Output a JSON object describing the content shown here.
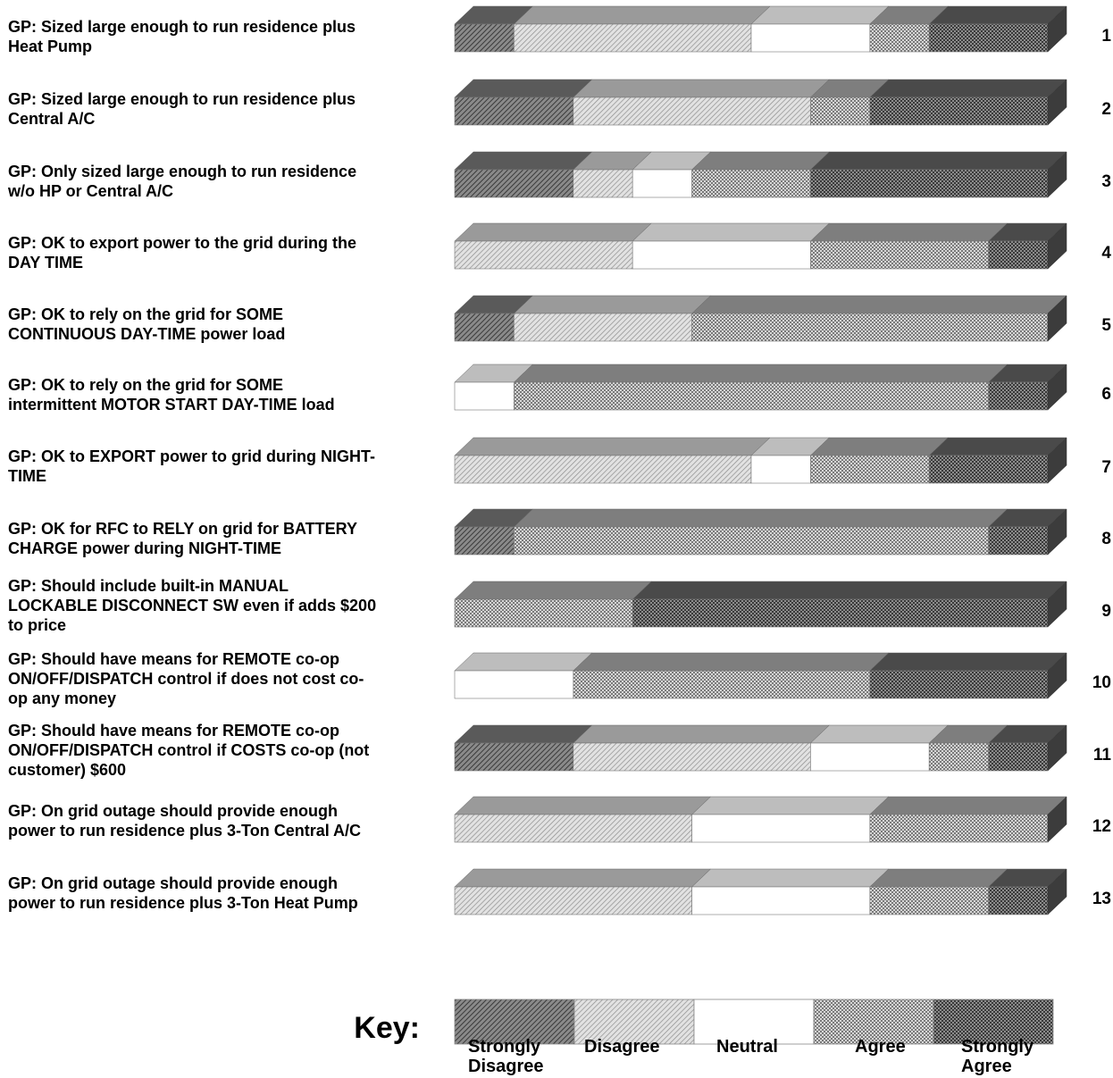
{
  "chart_data": {
    "type": "bar",
    "orientation": "horizontal",
    "stacked": true,
    "three_d": true,
    "key_title": "Key:",
    "series": [
      {
        "name": "Strongly\nDisagree",
        "pattern": "diagonal-dark",
        "color": "#6a6a6a"
      },
      {
        "name": "Disagree",
        "pattern": "diagonal-light",
        "color": "#bdbdbd"
      },
      {
        "name": "Neutral",
        "pattern": "solid-white",
        "color": "#ffffff"
      },
      {
        "name": "Agree",
        "pattern": "checker-light",
        "color": "#a8a8a8"
      },
      {
        "name": "Strongly\nAgree",
        "pattern": "checker-dark",
        "color": "#555555"
      }
    ],
    "rows": [
      {
        "number": "1",
        "question": "GP:  Sized large enough to run residence plus\nHeat Pump",
        "values": [
          1,
          4,
          2,
          1,
          2
        ]
      },
      {
        "number": "2",
        "question": "GP:  Sized large enough to run residence plus\nCentral A/C",
        "values": [
          2,
          4,
          0,
          1,
          3
        ]
      },
      {
        "number": "3",
        "question": "GP:  Only sized large enough to run residence\nw/o HP or Central A/C",
        "values": [
          2,
          1,
          1,
          2,
          4
        ]
      },
      {
        "number": "4",
        "question": "GP:  OK to export power to the grid during the\nDAY TIME",
        "values": [
          0,
          3,
          3,
          3,
          1
        ]
      },
      {
        "number": "5",
        "question": "GP:  OK to rely on the grid for SOME\nCONTINUOUS DAY-TIME power load",
        "values": [
          1,
          3,
          0,
          6,
          0
        ]
      },
      {
        "number": "6",
        "question": "GP:  OK to rely on the grid for SOME\nintermittent MOTOR START DAY-TIME load",
        "values": [
          0,
          0,
          1,
          8,
          1
        ]
      },
      {
        "number": "7",
        "question": "GP:  OK to EXPORT power to grid during NIGHT-\nTIME",
        "values": [
          0,
          5,
          1,
          2,
          2
        ]
      },
      {
        "number": "8",
        "question": "GP:  OK for RFC to RELY on grid for BATTERY\nCHARGE power during NIGHT-TIME",
        "values": [
          1,
          0,
          0,
          8,
          1
        ]
      },
      {
        "number": "9",
        "question": "GP:  Should include built-in MANUAL\nLOCKABLE DISCONNECT SW even if adds $200\nto price",
        "values": [
          0,
          0,
          0,
          3,
          7
        ]
      },
      {
        "number": "10",
        "question": "GP:  Should have means for REMOTE co-op\nON/OFF/DISPATCH control if does not cost co-\nop any money",
        "values": [
          0,
          0,
          2,
          5,
          3
        ]
      },
      {
        "number": "11",
        "question": "GP:  Should have means for REMOTE co-op\nON/OFF/DISPATCH control if COSTS co-op (not\ncustomer) $600",
        "values": [
          2,
          4,
          2,
          1,
          1
        ]
      },
      {
        "number": "12",
        "question": "GP:  On grid outage should provide enough\npower to run residence plus 3-Ton Central A/C",
        "values": [
          0,
          4,
          3,
          3,
          0
        ]
      },
      {
        "number": "13",
        "question": "GP:  On grid outage should provide enough\npower to run residence plus 3-Ton Heat Pump",
        "values": [
          0,
          4,
          3,
          2,
          1
        ]
      }
    ]
  }
}
